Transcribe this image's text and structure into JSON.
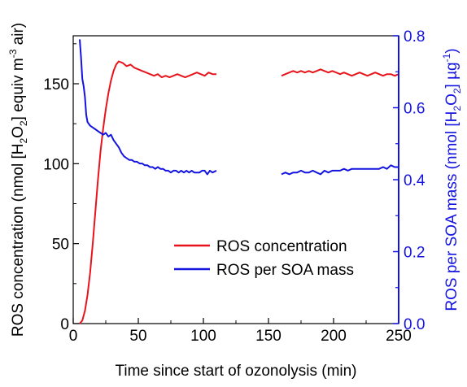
{
  "chart_data": {
    "type": "line",
    "xlabel": "Time since start of ozonolysis (min)",
    "ylabel_left": {
      "prefix": "ROS concentration (nmol [H",
      "sub": "2",
      "mid1": "O",
      "sub2": "2",
      "mid2": "] equiv m",
      "sup": "-3",
      "suffix": " air)"
    },
    "ylabel_right": {
      "prefix": "ROS per SOA mass (nmol [H",
      "sub": "2",
      "mid1": "O",
      "sub2": "2",
      "mid2": "] µg",
      "sup": "-1",
      "suffix": ")"
    },
    "xlim": [
      0,
      250
    ],
    "ylim_left": [
      0,
      180
    ],
    "ylim_right": [
      0,
      0.8
    ],
    "x_ticks": [
      "0",
      "50",
      "100",
      "150",
      "200",
      "250"
    ],
    "y_left_ticks": [
      "0",
      "50",
      "100",
      "150"
    ],
    "y_right_ticks": [
      "0.0",
      "0.2",
      "0.4",
      "0.6",
      "0.8"
    ],
    "legend_position": "center-right",
    "series": [
      {
        "name": "ROS concentration",
        "axis": "left",
        "color": "#e8141c",
        "segments": [
          [
            [
              5,
              0
            ],
            [
              7,
              2
            ],
            [
              9,
              8
            ],
            [
              11,
              18
            ],
            [
              13,
              32
            ],
            [
              15,
              50
            ],
            [
              17,
              70
            ],
            [
              19,
              90
            ],
            [
              21,
              108
            ],
            [
              23,
              122
            ],
            [
              25,
              134
            ],
            [
              27,
              144
            ],
            [
              29,
              152
            ],
            [
              31,
              158
            ],
            [
              33,
              162
            ],
            [
              35,
              164
            ],
            [
              38,
              163
            ],
            [
              41,
              161
            ],
            [
              44,
              162
            ],
            [
              47,
              160
            ],
            [
              50,
              159
            ],
            [
              53,
              158
            ],
            [
              56,
              157
            ],
            [
              59,
              156
            ],
            [
              62,
              155
            ],
            [
              65,
              156
            ],
            [
              68,
              154
            ],
            [
              71,
              155
            ],
            [
              74,
              154
            ],
            [
              77,
              155
            ],
            [
              80,
              156
            ],
            [
              83,
              155
            ],
            [
              86,
              154
            ],
            [
              89,
              155
            ],
            [
              92,
              156
            ],
            [
              95,
              157
            ],
            [
              98,
              156
            ],
            [
              101,
              155
            ],
            [
              104,
              157
            ],
            [
              107,
              156
            ],
            [
              110,
              156
            ]
          ],
          [
            [
              160,
              155
            ],
            [
              163,
              156
            ],
            [
              166,
              157
            ],
            [
              169,
              158
            ],
            [
              172,
              157
            ],
            [
              175,
              158
            ],
            [
              178,
              157
            ],
            [
              181,
              158
            ],
            [
              184,
              157
            ],
            [
              187,
              158
            ],
            [
              190,
              159
            ],
            [
              193,
              158
            ],
            [
              196,
              157
            ],
            [
              199,
              158
            ],
            [
              202,
              157
            ],
            [
              205,
              156
            ],
            [
              208,
              157
            ],
            [
              211,
              156
            ],
            [
              214,
              155
            ],
            [
              217,
              156
            ],
            [
              220,
              157
            ],
            [
              223,
              156
            ],
            [
              226,
              155
            ],
            [
              229,
              156
            ],
            [
              232,
              157
            ],
            [
              235,
              156
            ],
            [
              238,
              155
            ],
            [
              241,
              156
            ],
            [
              244,
              156
            ],
            [
              247,
              155
            ],
            [
              250,
              156
            ]
          ]
        ]
      },
      {
        "name": "ROS per SOA mass",
        "axis": "right",
        "color": "#1414e0",
        "segments": [
          [
            [
              5,
              0.79
            ],
            [
              6,
              0.74
            ],
            [
              7,
              0.68
            ],
            [
              8,
              0.66
            ],
            [
              9,
              0.63
            ],
            [
              10,
              0.58
            ],
            [
              11,
              0.56
            ],
            [
              13,
              0.55
            ],
            [
              15,
              0.545
            ],
            [
              17,
              0.54
            ],
            [
              19,
              0.535
            ],
            [
              21,
              0.53
            ],
            [
              23,
              0.525
            ],
            [
              25,
              0.53
            ],
            [
              27,
              0.52
            ],
            [
              29,
              0.525
            ],
            [
              31,
              0.51
            ],
            [
              33,
              0.5
            ],
            [
              35,
              0.49
            ],
            [
              37,
              0.475
            ],
            [
              39,
              0.465
            ],
            [
              41,
              0.46
            ],
            [
              43,
              0.455
            ],
            [
              45,
              0.455
            ],
            [
              47,
              0.45
            ],
            [
              49,
              0.45
            ],
            [
              51,
              0.445
            ],
            [
              53,
              0.445
            ],
            [
              55,
              0.44
            ],
            [
              57,
              0.44
            ],
            [
              59,
              0.435
            ],
            [
              61,
              0.435
            ],
            [
              63,
              0.43
            ],
            [
              65,
              0.435
            ],
            [
              67,
              0.43
            ],
            [
              69,
              0.43
            ],
            [
              71,
              0.425
            ],
            [
              73,
              0.425
            ],
            [
              75,
              0.42
            ],
            [
              77,
              0.425
            ],
            [
              79,
              0.425
            ],
            [
              81,
              0.42
            ],
            [
              83,
              0.425
            ],
            [
              85,
              0.42
            ],
            [
              87,
              0.425
            ],
            [
              89,
              0.42
            ],
            [
              91,
              0.425
            ],
            [
              93,
              0.42
            ],
            [
              95,
              0.42
            ],
            [
              97,
              0.42
            ],
            [
              99,
              0.425
            ],
            [
              101,
              0.425
            ],
            [
              103,
              0.415
            ],
            [
              105,
              0.425
            ],
            [
              107,
              0.42
            ],
            [
              110,
              0.425
            ]
          ],
          [
            [
              160,
              0.415
            ],
            [
              163,
              0.42
            ],
            [
              166,
              0.415
            ],
            [
              169,
              0.42
            ],
            [
              172,
              0.42
            ],
            [
              175,
              0.425
            ],
            [
              178,
              0.42
            ],
            [
              181,
              0.42
            ],
            [
              184,
              0.425
            ],
            [
              187,
              0.42
            ],
            [
              190,
              0.415
            ],
            [
              193,
              0.425
            ],
            [
              196,
              0.42
            ],
            [
              199,
              0.425
            ],
            [
              202,
              0.425
            ],
            [
              205,
              0.425
            ],
            [
              208,
              0.43
            ],
            [
              211,
              0.425
            ],
            [
              214,
              0.43
            ],
            [
              217,
              0.43
            ],
            [
              220,
              0.43
            ],
            [
              223,
              0.43
            ],
            [
              226,
              0.43
            ],
            [
              229,
              0.43
            ],
            [
              232,
              0.43
            ],
            [
              235,
              0.43
            ],
            [
              238,
              0.435
            ],
            [
              241,
              0.43
            ],
            [
              244,
              0.44
            ],
            [
              247,
              0.435
            ],
            [
              250,
              0.435
            ]
          ]
        ]
      }
    ]
  }
}
